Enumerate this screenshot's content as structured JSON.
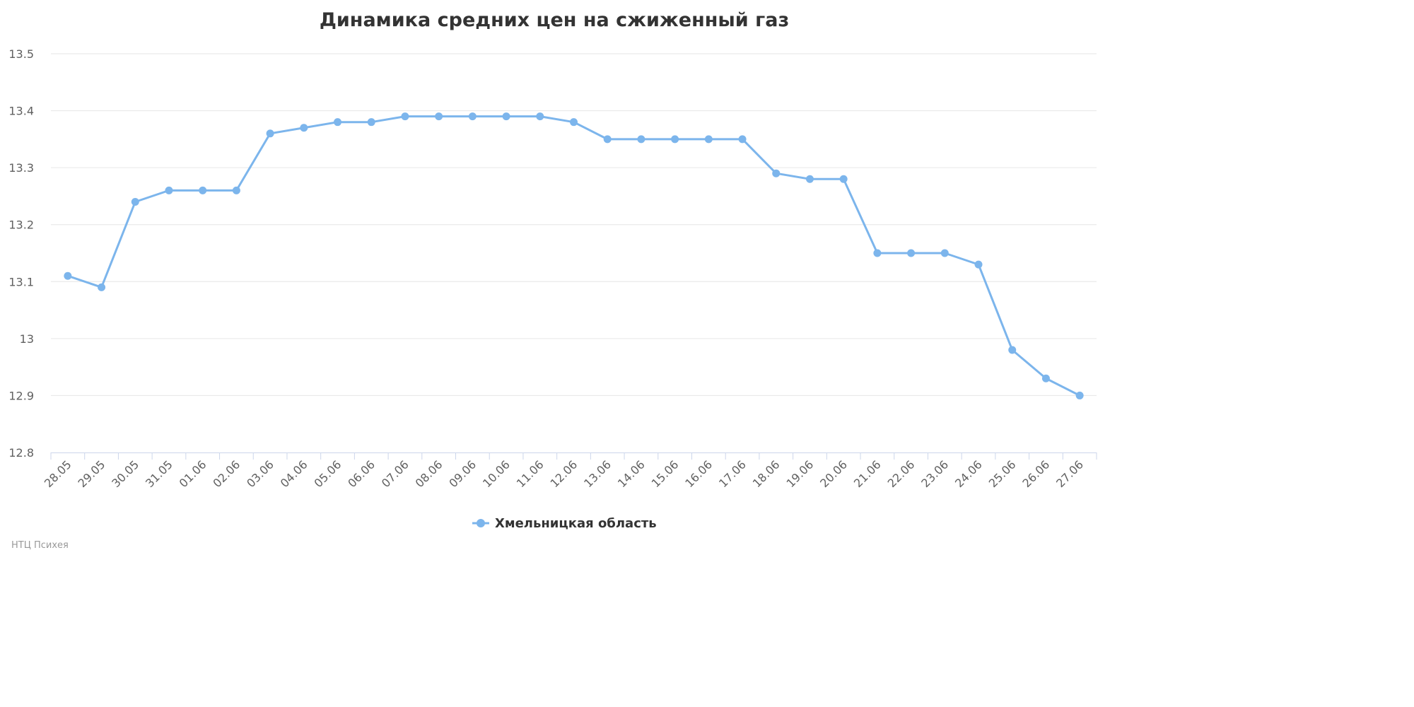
{
  "colors": {
    "series": "#7cb5ec",
    "grid": "#e6e6e6",
    "axis": "#ccd6eb",
    "title": "#333333",
    "tick_label": "#606060",
    "credits": "#999999"
  },
  "credits": "НТЦ Психея",
  "legend_position": "bottom-center",
  "chart_data": {
    "type": "line",
    "title": "Динамика средних цен на сжиженный газ",
    "xlabel": "",
    "ylabel": "",
    "grid": true,
    "ylim": [
      12.8,
      13.5
    ],
    "y_ticks": [
      "12.8",
      "12.9",
      "13",
      "13.1",
      "13.2",
      "13.3",
      "13.4",
      "13.5"
    ],
    "categories": [
      "28.05",
      "29.05",
      "30.05",
      "31.05",
      "01.06",
      "02.06",
      "03.06",
      "04.06",
      "05.06",
      "06.06",
      "07.06",
      "08.06",
      "09.06",
      "10.06",
      "11.06",
      "12.06",
      "13.06",
      "14.06",
      "15.06",
      "16.06",
      "17.06",
      "18.06",
      "19.06",
      "20.06",
      "21.06",
      "22.06",
      "23.06",
      "24.06",
      "25.06",
      "26.06",
      "27.06"
    ],
    "series": [
      {
        "name": "Хмельницкая область",
        "values": [
          13.11,
          13.09,
          13.24,
          13.26,
          13.26,
          13.26,
          13.36,
          13.37,
          13.38,
          13.38,
          13.39,
          13.39,
          13.39,
          13.39,
          13.39,
          13.38,
          13.35,
          13.35,
          13.35,
          13.35,
          13.35,
          13.29,
          13.28,
          13.28,
          13.15,
          13.15,
          13.15,
          13.13,
          12.98,
          12.93,
          12.9
        ]
      }
    ]
  }
}
